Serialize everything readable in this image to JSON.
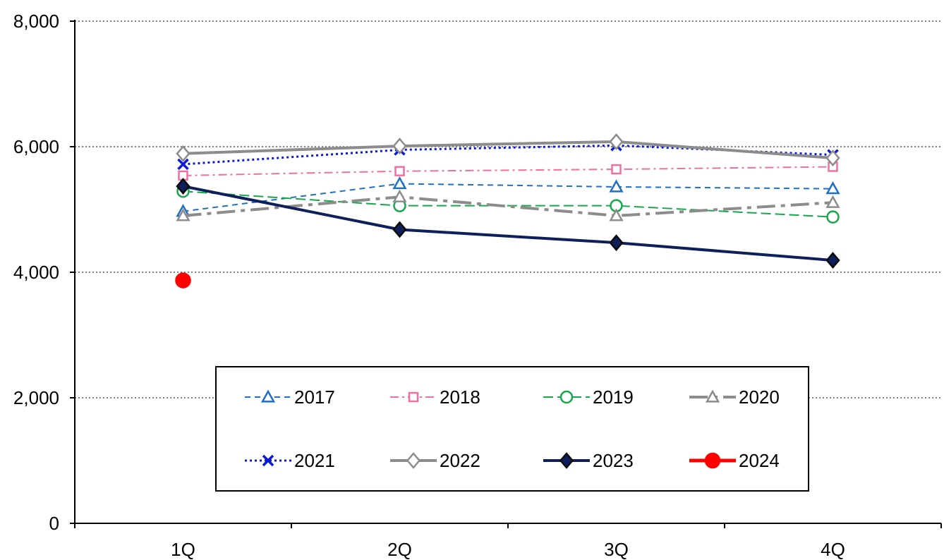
{
  "chart_data": {
    "type": "line",
    "title": "",
    "xlabel": "",
    "ylabel": "",
    "categories": [
      "1Q",
      "2Q",
      "3Q",
      "4Q"
    ],
    "ylim": [
      0,
      8000
    ],
    "yticks": [
      "0",
      "2,000",
      "4,000",
      "6,000",
      "8,000"
    ],
    "ytick_values": [
      0,
      2000,
      4000,
      6000,
      8000
    ],
    "grid": "horizontal dotted",
    "legend_position": "bottom-center inside",
    "series": [
      {
        "name": "2017",
        "values": [
          4970,
          5410,
          5360,
          5330
        ],
        "color": "#1f6fc5",
        "dash": "8,6",
        "marker": "triangle",
        "filled": false,
        "width": 2
      },
      {
        "name": "2018",
        "values": [
          5540,
          5610,
          5640,
          5680
        ],
        "color": "#ef6fa0",
        "dash": "12,5,3,5",
        "marker": "square",
        "filled": false,
        "width": 2
      },
      {
        "name": "2019",
        "values": [
          5290,
          5060,
          5060,
          4880
        ],
        "color": "#16a84a",
        "dash": "14,6",
        "marker": "circle",
        "filled": false,
        "width": 2
      },
      {
        "name": "2020",
        "values": [
          4900,
          5200,
          4900,
          5110
        ],
        "color": "#8c8c8c",
        "dash": "26,8,6,8",
        "marker": "triangle",
        "filled": false,
        "width": 4
      },
      {
        "name": "2021",
        "values": [
          5720,
          5950,
          6020,
          5870
        ],
        "color": "#0a1ad8",
        "dash": "3,4",
        "marker": "x",
        "filled": false,
        "width": 3
      },
      {
        "name": "2022",
        "values": [
          5890,
          6010,
          6080,
          5820
        ],
        "color": "#8c8c8c",
        "dash": "",
        "marker": "diamond",
        "filled": false,
        "width": 4
      },
      {
        "name": "2023",
        "values": [
          5370,
          4680,
          4470,
          4190
        ],
        "color": "#0e1f5b",
        "dash": "",
        "marker": "diamond",
        "filled": true,
        "width": 4
      },
      {
        "name": "2024",
        "values": [
          3870,
          null,
          null,
          null
        ],
        "color": "#ff0000",
        "dash": "",
        "marker": "circle",
        "filled": true,
        "width": 5
      }
    ]
  }
}
